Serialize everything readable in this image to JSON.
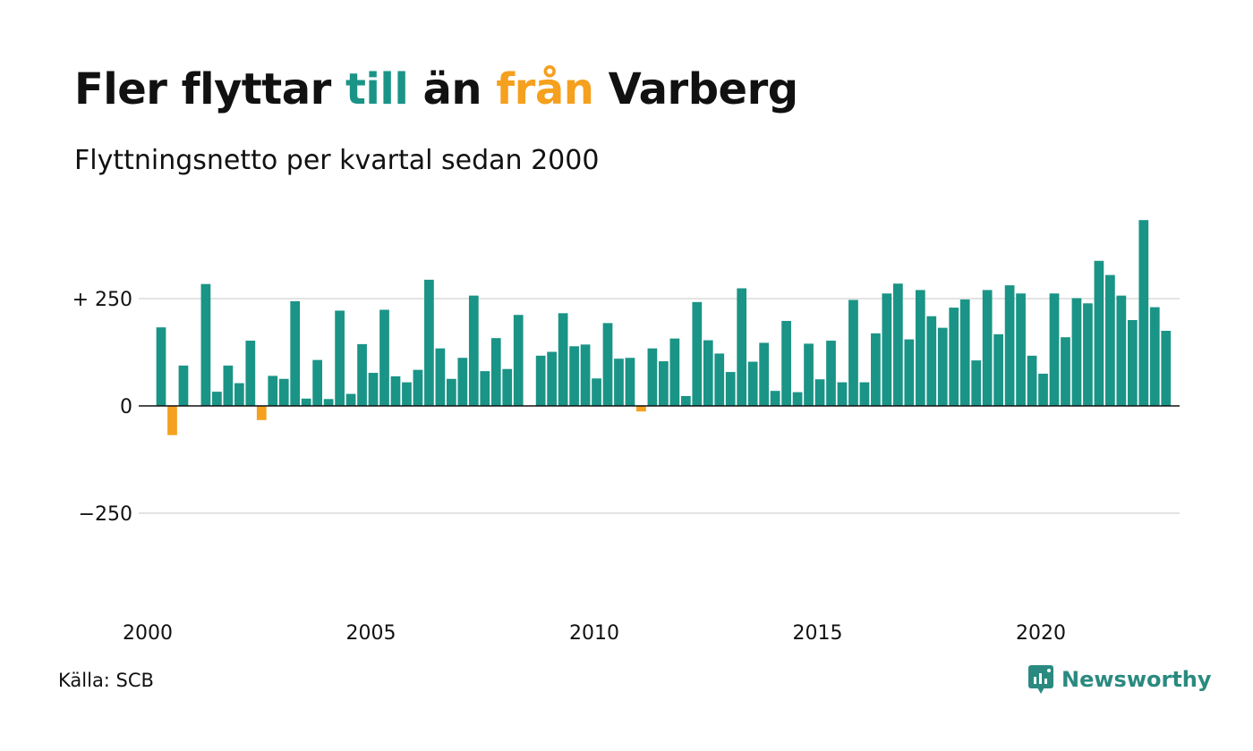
{
  "title": {
    "part1": "Fler flyttar ",
    "part2": "till",
    "part3": " än ",
    "part4": "från",
    "part5": " Varberg"
  },
  "subtitle": "Flyttningsnetto per kvartal sedan 2000",
  "source": "Källa: SCB",
  "brand": "Newsworthy",
  "colors": {
    "positive": "#1a9486",
    "negative": "#f5a01e",
    "title_till": "#1a9486",
    "title_fran": "#f5a01e",
    "grid": "#e3e3e3",
    "brand": "#2a8a80"
  },
  "chart_data": {
    "type": "bar",
    "title": "Fler flyttar till än från Varberg",
    "subtitle": "Flyttningsnetto per kvartal sedan 2000",
    "x_start": 2000,
    "x_end": 2023,
    "x_ticks": [
      {
        "year": 2000,
        "label": "2000"
      },
      {
        "year": 2005,
        "label": "2005"
      },
      {
        "year": 2010,
        "label": "2010"
      },
      {
        "year": 2015,
        "label": "2015"
      },
      {
        "year": 2020,
        "label": "2020"
      }
    ],
    "y_ticks": [
      {
        "value": 250,
        "label": "+ 250"
      },
      {
        "value": 0,
        "label": "0"
      },
      {
        "value": -250,
        "label": "−250"
      }
    ],
    "ylim": [
      -400,
      450
    ],
    "grid": true,
    "values": [
      183,
      -68,
      94,
      null,
      284,
      33,
      94,
      53,
      152,
      -33,
      70,
      63,
      244,
      17,
      107,
      16,
      222,
      28,
      144,
      77,
      224,
      69,
      55,
      84,
      294,
      134,
      63,
      112,
      257,
      81,
      158,
      86,
      212,
      null,
      117,
      126,
      216,
      139,
      143,
      64,
      193,
      110,
      112,
      -13,
      134,
      104,
      157,
      23,
      242,
      153,
      122,
      79,
      274,
      103,
      147,
      35,
      198,
      32,
      145,
      62,
      152,
      55,
      247,
      55,
      169,
      262,
      285,
      155,
      270,
      209,
      182,
      229,
      248,
      106,
      270,
      167,
      281,
      262,
      117,
      75,
      262,
      160,
      251,
      239,
      338,
      305,
      257,
      200,
      433,
      230,
      175
    ]
  }
}
